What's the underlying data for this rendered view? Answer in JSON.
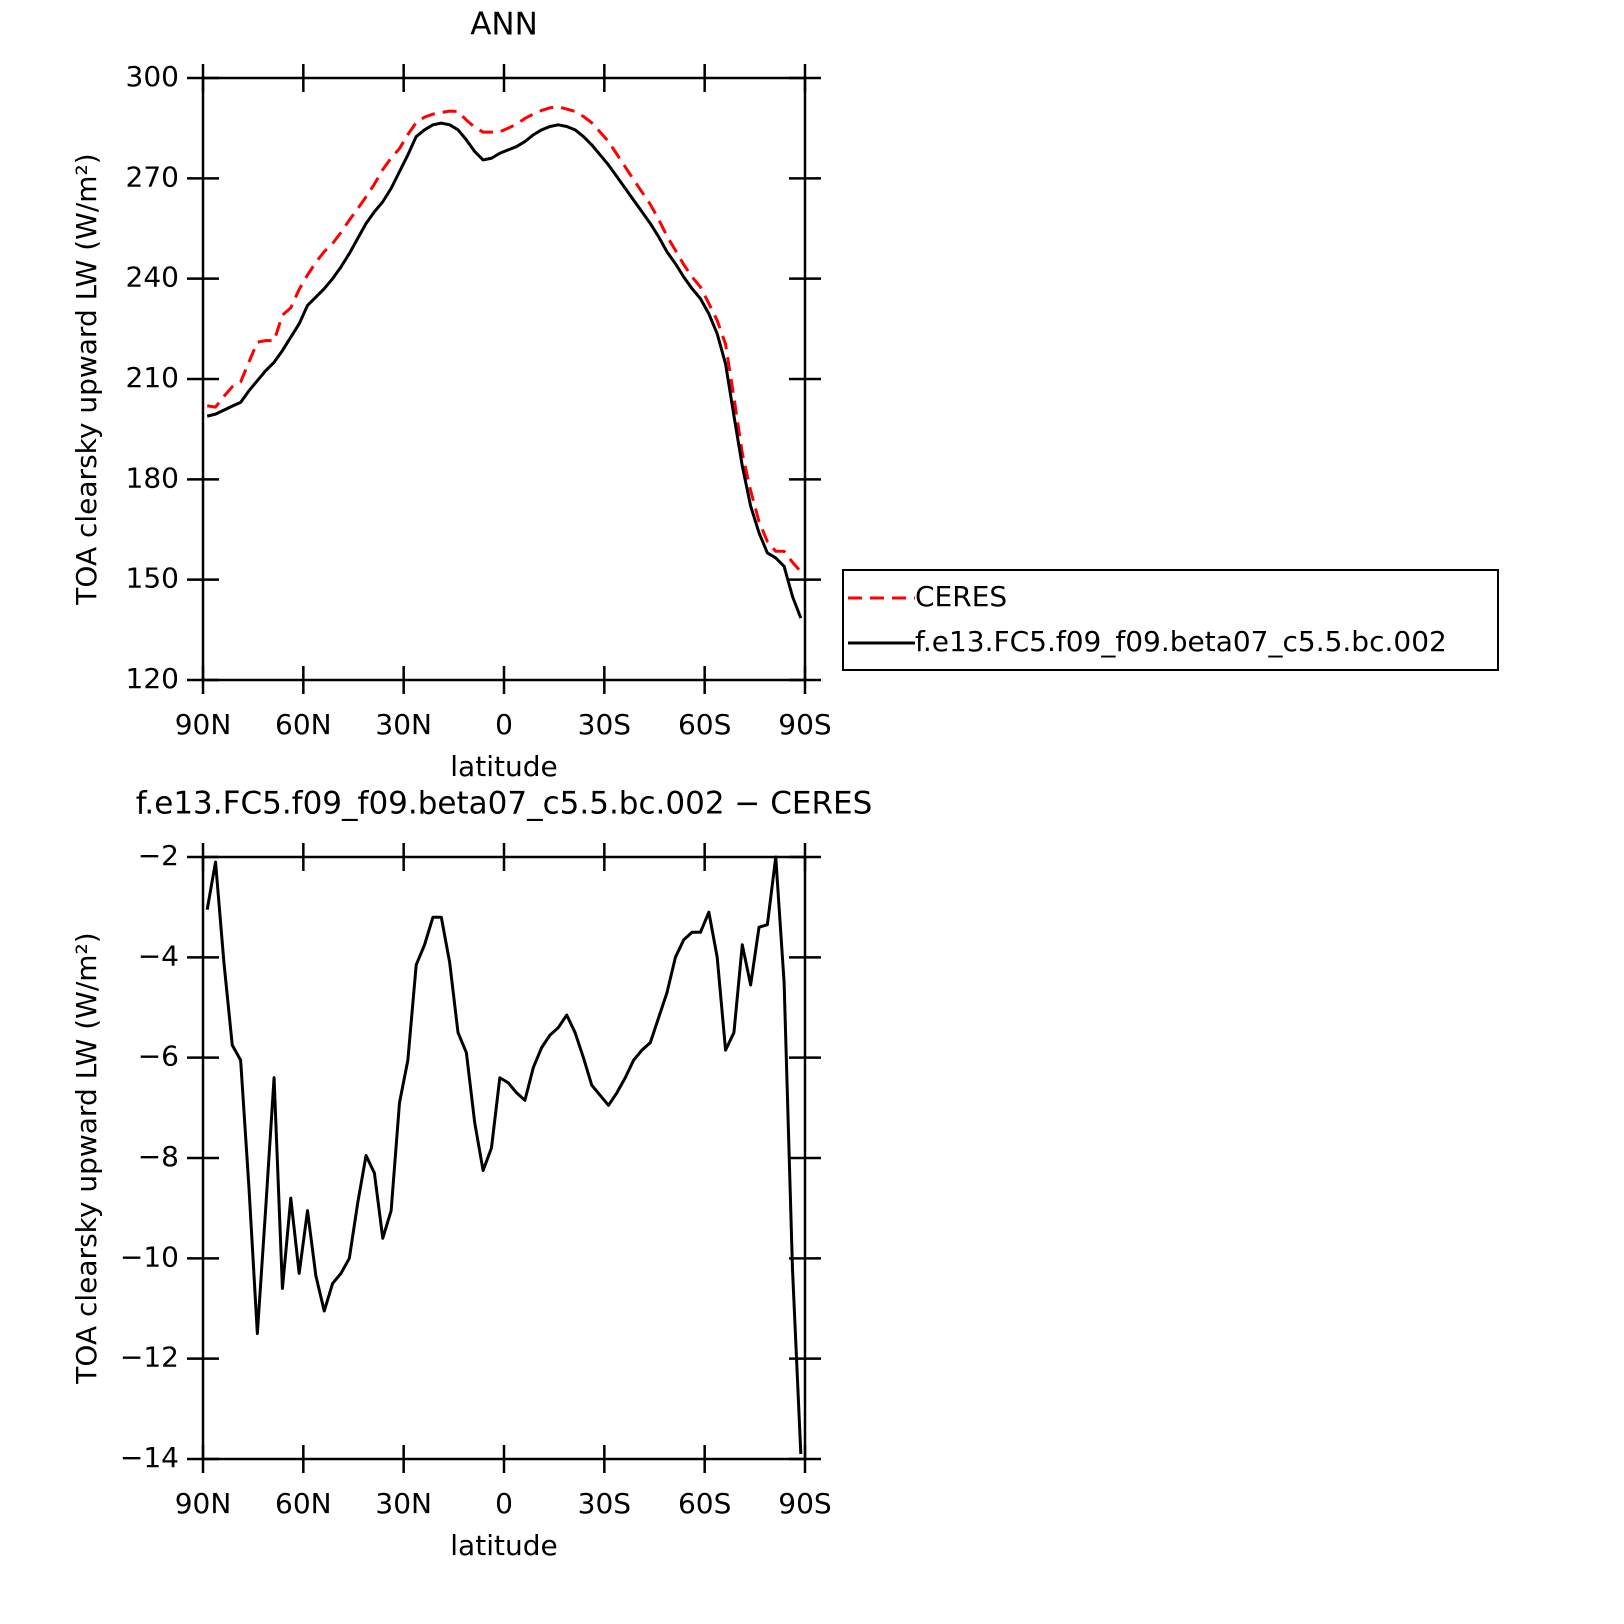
{
  "chart_data": [
    {
      "type": "line",
      "title": "ANN",
      "xlabel": "latitude",
      "ylabel": "TOA clearsky upward LW (W/m²)",
      "x": [
        88.75,
        86.25,
        83.75,
        81.25,
        78.75,
        76.25,
        73.75,
        71.25,
        68.75,
        66.25,
        63.75,
        61.25,
        58.75,
        56.25,
        53.75,
        51.25,
        48.75,
        46.25,
        43.75,
        41.25,
        38.75,
        36.25,
        33.75,
        31.25,
        28.75,
        26.25,
        23.75,
        21.25,
        18.75,
        16.25,
        13.75,
        11.25,
        8.75,
        6.25,
        3.75,
        1.25,
        -1.25,
        -3.75,
        -6.25,
        -8.75,
        -11.25,
        -13.75,
        -16.25,
        -18.75,
        -21.25,
        -23.75,
        -26.25,
        -28.75,
        -31.25,
        -33.75,
        -36.25,
        -38.75,
        -41.25,
        -43.75,
        -46.25,
        -48.75,
        -51.25,
        -53.75,
        -56.25,
        -58.75,
        -61.25,
        -63.75,
        -66.25,
        -68.75,
        -71.25,
        -73.75,
        -76.25,
        -78.75,
        -81.25,
        -83.75,
        -86.25,
        -88.75
      ],
      "series": [
        {
          "name": "CERES",
          "color": "#ff0000",
          "dash": "dashed",
          "values": [
            202,
            201.6,
            204.8,
            207.7,
            209.1,
            215.1,
            221,
            221.5,
            221.4,
            229.1,
            231.3,
            236.8,
            241.1,
            244.9,
            248.1,
            250.5,
            253.8,
            257.5,
            260.9,
            264.5,
            268.3,
            272.6,
            276.1,
            278.9,
            283.1,
            286.7,
            288.3,
            289.2,
            289.7,
            290.1,
            290,
            287.4,
            285.3,
            283.8,
            283.8,
            283.9,
            285,
            286.2,
            287.9,
            289.2,
            290.3,
            291.1,
            291.4,
            290.7,
            290,
            288.5,
            286.6,
            283.8,
            281,
            277.2,
            273.4,
            269.6,
            265.9,
            262.2,
            257.7,
            252.7,
            248.5,
            244.2,
            240.5,
            237.5,
            232.6,
            227.5,
            220.4,
            204.5,
            187.8,
            176.6,
            167.4,
            161.4,
            158.5,
            158.5,
            155.2,
            152.4
          ]
        },
        {
          "name": "f.e13.FC5.f09_f09.beta07_c5.5.bc.002",
          "color": "#000000",
          "dash": "solid",
          "values": [
            198.9,
            199.5,
            200.7,
            201.9,
            203,
            206.5,
            209.5,
            212.5,
            215,
            218.5,
            222.5,
            226.5,
            232,
            234.5,
            237,
            240,
            243.5,
            247.5,
            252,
            256.5,
            260,
            263,
            267,
            272,
            277,
            282.5,
            284.5,
            286,
            286.5,
            286,
            284.5,
            281.5,
            278,
            275.5,
            276,
            277.5,
            278.5,
            279.5,
            281,
            283,
            284.5,
            285.5,
            286,
            285.5,
            284.5,
            282.5,
            280,
            277,
            274,
            270.5,
            267,
            263.5,
            260,
            256.5,
            252.5,
            248,
            244.5,
            240.5,
            237,
            234,
            229.5,
            223.5,
            214.5,
            199,
            184,
            172,
            164,
            158,
            156.5,
            154,
            145,
            138.5
          ]
        }
      ],
      "xlim": [
        90,
        -90
      ],
      "xticks": [
        {
          "value": 90,
          "label": "90N"
        },
        {
          "value": 60,
          "label": "60N"
        },
        {
          "value": 30,
          "label": "30N"
        },
        0,
        {
          "value": -30,
          "label": "30S"
        },
        {
          "value": -60,
          "label": "60S"
        },
        {
          "value": -90,
          "label": "90S"
        }
      ],
      "ylim": [
        120,
        300
      ],
      "yticks": [
        120,
        150,
        180,
        210,
        240,
        270,
        300
      ],
      "legend": "right"
    },
    {
      "type": "line",
      "title": "f.e13.FC5.f09_f09.beta07_c5.5.bc.002 − CERES",
      "xlabel": "latitude",
      "ylabel": "TOA clearsky upward LW (W/m²)",
      "x": [
        88.75,
        86.25,
        83.75,
        81.25,
        78.75,
        76.25,
        73.75,
        71.25,
        68.75,
        66.25,
        63.75,
        61.25,
        58.75,
        56.25,
        53.75,
        51.25,
        48.75,
        46.25,
        43.75,
        41.25,
        38.75,
        36.25,
        33.75,
        31.25,
        28.75,
        26.25,
        23.75,
        21.25,
        18.75,
        16.25,
        13.75,
        11.25,
        8.75,
        6.25,
        3.75,
        1.25,
        -1.25,
        -3.75,
        -6.25,
        -8.75,
        -11.25,
        -13.75,
        -16.25,
        -18.75,
        -21.25,
        -23.75,
        -26.25,
        -28.75,
        -31.25,
        -33.75,
        -36.25,
        -38.75,
        -41.25,
        -43.75,
        -46.25,
        -48.75,
        -51.25,
        -53.75,
        -56.25,
        -58.75,
        -61.25,
        -63.75,
        -66.25,
        -68.75,
        -71.25,
        -73.75,
        -76.25,
        -78.75,
        -81.25,
        -83.75,
        -86.25,
        -88.75
      ],
      "values": [
        -3.05,
        -2.1,
        -4.1,
        -5.75,
        -6.05,
        -8.6,
        -11.5,
        -9,
        -6.4,
        -10.6,
        -8.8,
        -10.3,
        -9.05,
        -10.35,
        -11.05,
        -10.5,
        -10.3,
        -10,
        -8.9,
        -7.95,
        -8.3,
        -9.6,
        -9.05,
        -6.9,
        -6.05,
        -4.15,
        -3.75,
        -3.2,
        -3.2,
        -4.1,
        -5.5,
        -5.9,
        -7.3,
        -8.25,
        -7.8,
        -6.4,
        -6.5,
        -6.7,
        -6.85,
        -6.2,
        -5.8,
        -5.55,
        -5.4,
        -5.15,
        -5.5,
        -6,
        -6.55,
        -6.75,
        -6.95,
        -6.7,
        -6.4,
        -6.05,
        -5.85,
        -5.7,
        -5.2,
        -4.7,
        -4,
        -3.65,
        -3.5,
        -3.5,
        -3.1,
        -4,
        -5.85,
        -5.5,
        -3.75,
        -4.55,
        -3.4,
        -3.35,
        -2,
        -4.5,
        -10.2,
        -13.9
      ],
      "color": "#000000",
      "xlim": [
        90,
        -90
      ],
      "xticks": [
        {
          "value": 90,
          "label": "90N"
        },
        {
          "value": 60,
          "label": "60N"
        },
        {
          "value": 30,
          "label": "30N"
        },
        0,
        {
          "value": -30,
          "label": "30S"
        },
        {
          "value": -60,
          "label": "60S"
        },
        {
          "value": -90,
          "label": "90S"
        }
      ],
      "ylim": [
        -14,
        -2
      ],
      "yticks": [
        {
          "value": -14,
          "label": "−14"
        },
        {
          "value": -12,
          "label": "−12"
        },
        {
          "value": -10,
          "label": "−10"
        },
        {
          "value": -8,
          "label": "−8"
        },
        {
          "value": -6,
          "label": "−6"
        },
        {
          "value": -4,
          "label": "−4"
        },
        {
          "value": -2,
          "label": "−2"
        }
      ]
    }
  ]
}
